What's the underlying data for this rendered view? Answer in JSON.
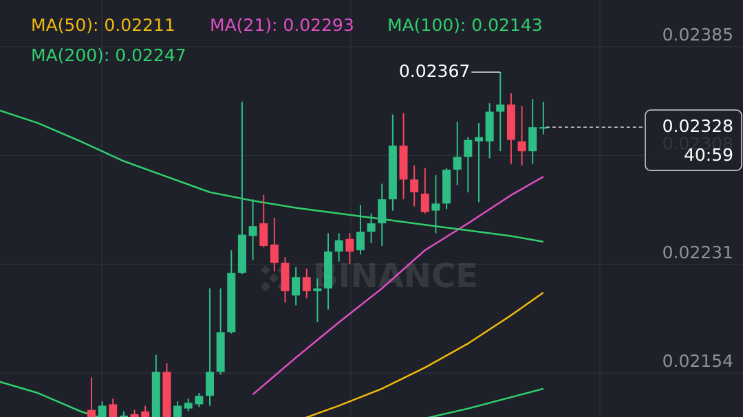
{
  "chart_data": {
    "type": "candlestick",
    "ylim": [
      0.02123,
      0.02418
    ],
    "yticks": [
      0.02385,
      0.02308,
      0.02231,
      0.02154
    ],
    "grid": true,
    "candles": {
      "x": [
        9,
        10,
        11,
        12,
        13,
        14,
        15,
        16,
        17,
        18,
        19,
        20,
        21,
        22,
        23,
        24,
        25,
        26,
        27,
        28,
        29,
        30,
        31,
        32,
        33,
        34,
        35,
        36,
        37,
        38,
        39,
        40,
        41,
        42,
        43,
        44,
        45,
        46,
        47,
        48,
        49,
        50,
        51
      ],
      "open": [
        0.02128,
        0.0212,
        0.02132,
        0.0212,
        0.02125,
        0.02127,
        0.0212,
        0.02155,
        0.0212,
        0.02129,
        0.02132,
        0.02138,
        0.02155,
        0.02183,
        0.02225,
        0.02251,
        0.0226,
        0.02245,
        0.02232,
        0.02209,
        0.02222,
        0.02212,
        0.02214,
        0.0224,
        0.02249,
        0.02241,
        0.02254,
        0.0226,
        0.02277,
        0.02315,
        0.02291,
        0.02281,
        0.02269,
        0.02274,
        0.02298,
        0.02307,
        0.02318,
        0.02318,
        0.02339,
        0.02344,
        0.02318,
        0.02311,
        0.02327
      ],
      "high": [
        0.02151,
        0.02134,
        0.02136,
        0.02127,
        0.02128,
        0.02131,
        0.02167,
        0.02161,
        0.02134,
        0.02136,
        0.0214,
        0.02214,
        0.02214,
        0.02241,
        0.02346,
        0.02277,
        0.0228,
        0.02264,
        0.02236,
        0.02229,
        0.02228,
        0.02221,
        0.02253,
        0.02253,
        0.02253,
        0.02273,
        0.02267,
        0.02288,
        0.02337,
        0.02338,
        0.02301,
        0.02299,
        0.02294,
        0.02299,
        0.02332,
        0.02321,
        0.02331,
        0.02345,
        0.02367,
        0.02352,
        0.02343,
        0.02348,
        0.02346
      ],
      "low": [
        0.0212,
        0.0212,
        0.0212,
        0.0212,
        0.0212,
        0.0212,
        0.0212,
        0.0212,
        0.0212,
        0.02127,
        0.0213,
        0.02131,
        0.02153,
        0.02182,
        0.02224,
        0.02234,
        0.02243,
        0.02226,
        0.02204,
        0.02202,
        0.02207,
        0.0219,
        0.02199,
        0.02233,
        0.02231,
        0.02238,
        0.02246,
        0.02244,
        0.02269,
        0.02277,
        0.02272,
        0.02267,
        0.02253,
        0.0227,
        0.02287,
        0.02282,
        0.02275,
        0.02306,
        0.02311,
        0.02302,
        0.02301,
        0.02302,
        0.02323
      ],
      "close": [
        0.0212,
        0.02131,
        0.0212,
        0.02124,
        0.0212,
        0.0212,
        0.02155,
        0.0212,
        0.02131,
        0.02133,
        0.02138,
        0.02155,
        0.02183,
        0.02225,
        0.02252,
        0.02258,
        0.02244,
        0.02232,
        0.02212,
        0.02222,
        0.02212,
        0.02214,
        0.0224,
        0.02248,
        0.0224,
        0.02254,
        0.0226,
        0.02277,
        0.02315,
        0.02291,
        0.02282,
        0.02268,
        0.02274,
        0.02298,
        0.02307,
        0.02319,
        0.02321,
        0.02339,
        0.02344,
        0.02319,
        0.02311,
        0.02328,
        0.02328
      ],
      "up_color": "#2ebd85",
      "down_color": "#f6465d"
    },
    "series": [
      {
        "name": "MA(50): 0.02211",
        "color": "#f0b90b",
        "x": [
          0,
          4,
          8,
          12,
          16,
          20,
          24,
          28,
          32,
          36,
          40,
          44,
          48,
          51
        ],
        "values": [
          null,
          null,
          null,
          null,
          null,
          null,
          null,
          0.0212,
          0.02131,
          0.02143,
          0.02158,
          0.02175,
          0.02195,
          0.02211
        ]
      },
      {
        "name": "MA(21): 0.02293",
        "color": "#e04fc4",
        "x": [
          0,
          4,
          8,
          12,
          16,
          20,
          24,
          28,
          32,
          36,
          40,
          44,
          48,
          51
        ],
        "values": [
          null,
          null,
          null,
          null,
          null,
          null,
          0.02139,
          0.02165,
          0.0219,
          0.02214,
          0.02241,
          0.0226,
          0.0228,
          0.02293
        ]
      },
      {
        "name": "MA(100): 0.02143",
        "color": "#2fd06c",
        "x": [
          0,
          4,
          8,
          12,
          16,
          20,
          24,
          28,
          32,
          36,
          40,
          44,
          48,
          51
        ],
        "values": [
          0.02149,
          0.0214,
          0.02127,
          0.02117,
          null,
          null,
          null,
          null,
          null,
          null,
          0.02122,
          0.02129,
          0.02137,
          0.02143
        ]
      },
      {
        "name": "MA(200): 0.02247",
        "color": "#2fd06c",
        "x": [
          0,
          4,
          8,
          12,
          16,
          20,
          24,
          28,
          32,
          36,
          40,
          44,
          48,
          51
        ],
        "values": [
          0.02341,
          0.02331,
          0.02318,
          0.02304,
          0.02293,
          0.02282,
          0.02276,
          0.02271,
          0.02267,
          0.02263,
          0.02259,
          0.02255,
          0.02251,
          0.02247
        ]
      }
    ],
    "high_label": 0.02367,
    "last_price": 0.02328,
    "countdown": "40:59",
    "watermark": "BINANCE"
  }
}
